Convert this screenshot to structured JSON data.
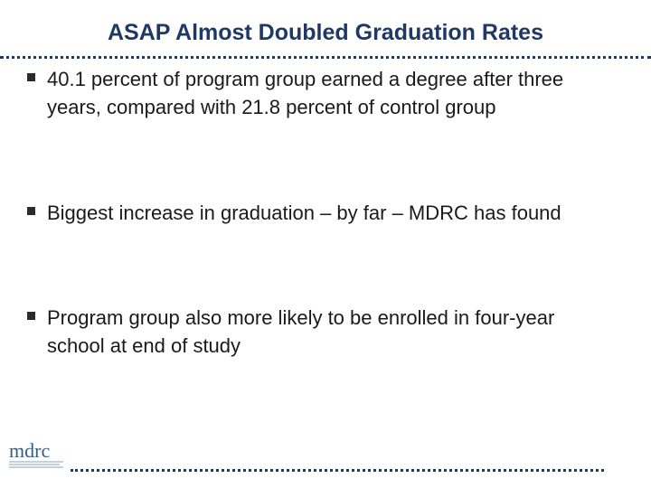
{
  "slide": {
    "title": "ASAP Almost Doubled Graduation Rates",
    "bullets": [
      "40.1 percent of program group earned a degree after three years, compared with 21.8 percent of control group",
      "Biggest increase in graduation – by far – MDRC has found",
      "Program group also more likely to be enrolled in four-year school at end of study"
    ]
  },
  "logo": {
    "text": "mdrc",
    "icon": "mdrc-logo-icon"
  },
  "colors": {
    "title": "#1f3864",
    "body_text": "#1a1a1a",
    "rule": "#1f3864",
    "logo": "#2f5f8a"
  }
}
